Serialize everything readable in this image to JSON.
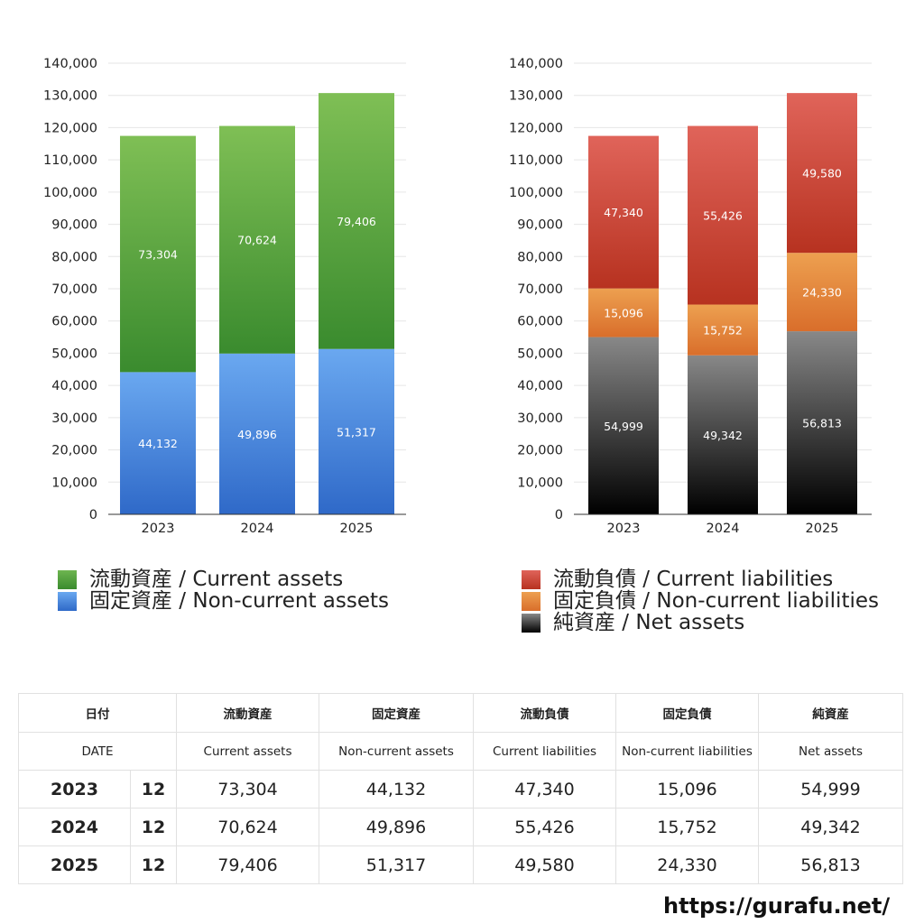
{
  "chart_data": [
    {
      "type": "bar",
      "stacked": true,
      "categories": [
        "2023",
        "2024",
        "2025"
      ],
      "series": [
        {
          "name": "固定資産 / Non-current assets",
          "values": [
            44132,
            49896,
            51317
          ],
          "colors": [
            "#6aa8f0",
            "#2f69c8"
          ]
        },
        {
          "name": "流動資産 / Current assets",
          "values": [
            73304,
            70624,
            79406
          ],
          "colors": [
            "#7fbf55",
            "#3a8b2e"
          ]
        }
      ],
      "ylim": [
        0,
        140000
      ],
      "yticks": [
        0,
        10000,
        20000,
        30000,
        40000,
        50000,
        60000,
        70000,
        80000,
        90000,
        100000,
        110000,
        120000,
        130000,
        140000
      ],
      "grid": true,
      "legend": "below"
    },
    {
      "type": "bar",
      "stacked": true,
      "categories": [
        "2023",
        "2024",
        "2025"
      ],
      "series": [
        {
          "name": "純資産 / Net assets",
          "values": [
            54999,
            49342,
            56813
          ],
          "colors": [
            "#888888",
            "#000000"
          ]
        },
        {
          "name": "固定負債 / Non-current liabilities",
          "values": [
            15096,
            15752,
            24330
          ],
          "colors": [
            "#eda050",
            "#d96e2b"
          ]
        },
        {
          "name": "流動負債 / Current liabilities",
          "values": [
            47340,
            55426,
            49580
          ],
          "colors": [
            "#e0645a",
            "#b73220"
          ]
        }
      ],
      "ylim": [
        0,
        140000
      ],
      "yticks": [
        0,
        10000,
        20000,
        30000,
        40000,
        50000,
        60000,
        70000,
        80000,
        90000,
        100000,
        110000,
        120000,
        130000,
        140000
      ],
      "grid": true,
      "legend": "below"
    }
  ],
  "legend_left": [
    {
      "label": "流動資産 / Current assets",
      "swatch": "green"
    },
    {
      "label": "固定資産 / Non-current assets",
      "swatch": "blue"
    }
  ],
  "legend_right": [
    {
      "label": "流動負債 / Current liabilities",
      "swatch": "red"
    },
    {
      "label": "固定負債 / Non-current liabilities",
      "swatch": "orange"
    },
    {
      "label": "純資産 / Net assets",
      "swatch": "black"
    }
  ],
  "table": {
    "header_jp": [
      "日付",
      "流動資産",
      "固定資産",
      "流動負債",
      "固定負債",
      "純資産"
    ],
    "header_en": [
      "DATE",
      "Current assets",
      "Non-current assets",
      "Current liabilities",
      "Non-current liabilities",
      "Net assets"
    ],
    "rows": [
      {
        "year": "2023",
        "month": "12",
        "values": [
          "73,304",
          "44,132",
          "47,340",
          "15,096",
          "54,999"
        ]
      },
      {
        "year": "2024",
        "month": "12",
        "values": [
          "70,624",
          "49,896",
          "55,426",
          "15,752",
          "49,342"
        ]
      },
      {
        "year": "2025",
        "month": "12",
        "values": [
          "79,406",
          "51,317",
          "49,580",
          "24,330",
          "56,813"
        ]
      }
    ]
  },
  "footer": {
    "url": "https://gurafu.net/"
  }
}
